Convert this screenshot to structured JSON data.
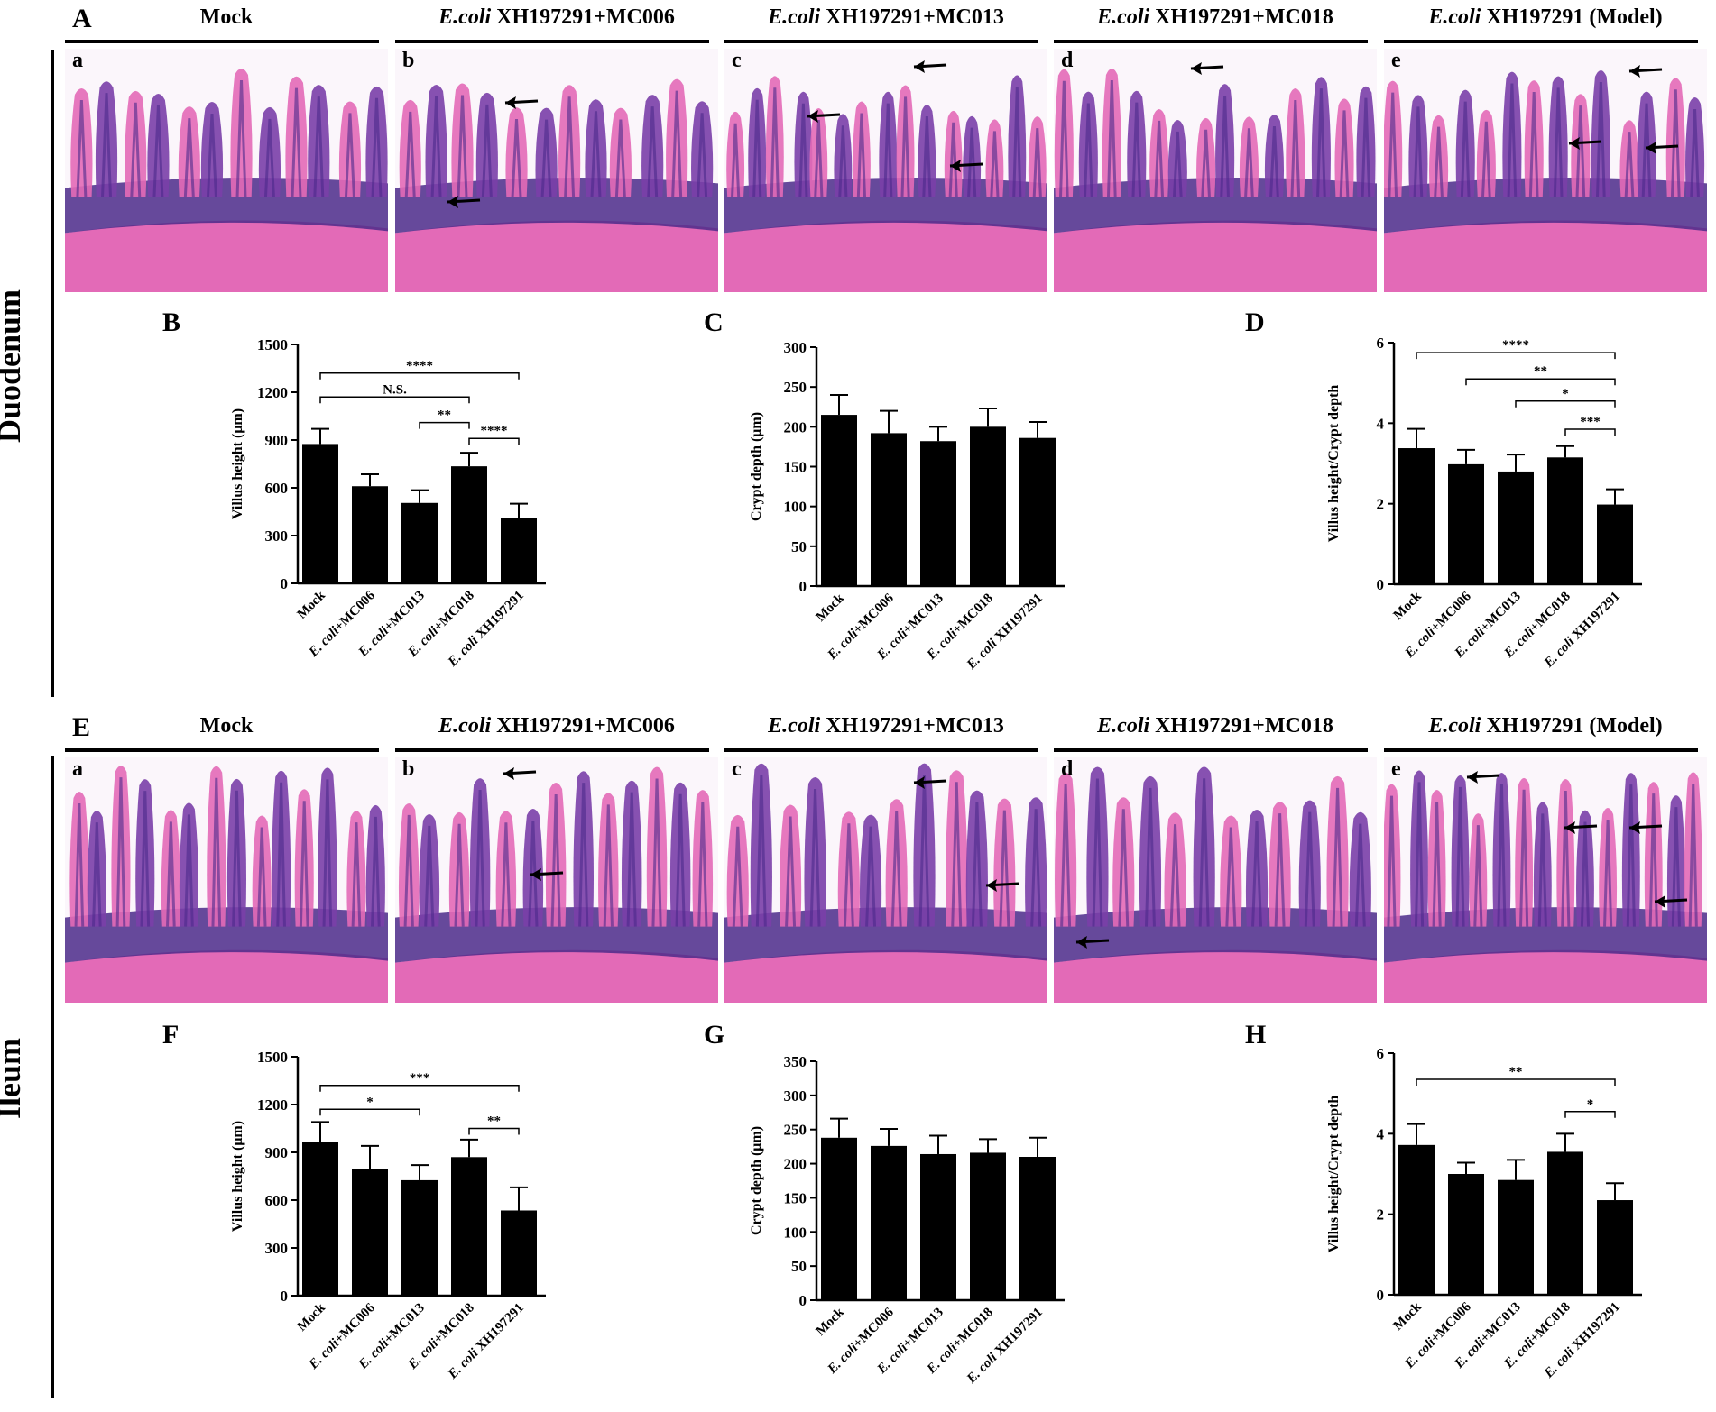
{
  "sections": [
    {
      "id": "duodenum",
      "label": "Duodenum",
      "histo_letter": "A",
      "groups": [
        {
          "sub": "a",
          "title_plain": "Mock",
          "title_italic": ""
        },
        {
          "sub": "b",
          "title_italic": "E.coli",
          "title_plain": " XH197291+MC006"
        },
        {
          "sub": "c",
          "title_italic": "E.coli",
          "title_plain": " XH197291+MC013"
        },
        {
          "sub": "d",
          "title_italic": "E.coli",
          "title_plain": " XH197291+MC018"
        },
        {
          "sub": "e",
          "title_italic": "E.coli",
          "title_plain": " XH197291 (Model)"
        }
      ],
      "charts": [
        "B",
        "C",
        "D"
      ]
    },
    {
      "id": "ileum",
      "label": "Ileum",
      "histo_letter": "E",
      "groups": [
        {
          "sub": "a",
          "title_plain": "Mock",
          "title_italic": ""
        },
        {
          "sub": "b",
          "title_italic": "E.coli",
          "title_plain": " XH197291+MC006"
        },
        {
          "sub": "c",
          "title_italic": "E.coli",
          "title_plain": " XH197291+MC013"
        },
        {
          "sub": "d",
          "title_italic": "E.coli",
          "title_plain": " XH197291+MC018"
        },
        {
          "sub": "e",
          "title_italic": "E.coli",
          "title_plain": " XH197291 (Model)"
        }
      ],
      "charts": [
        "F",
        "G",
        "H"
      ]
    }
  ],
  "colors": {
    "tissue_pink": "#e36ab7",
    "tissue_purple": "#7a3fa8",
    "tissue_dark": "#4b2a8a",
    "lumen": "#fbf6fb",
    "bar": "#000000"
  },
  "chart_data": [
    {
      "panel": "B",
      "type": "bar",
      "ylabel": "Villus height (μm)",
      "categories": [
        [
          "Mock",
          ""
        ],
        [
          "E. coli",
          "+MC006"
        ],
        [
          "E. coli",
          "+MC013"
        ],
        [
          "E. coli",
          "+MC018"
        ],
        [
          "E. coli",
          " XH197291"
        ]
      ],
      "values": [
        875,
        610,
        505,
        735,
        410
      ],
      "errors": [
        95,
        75,
        80,
        85,
        90
      ],
      "ylim": [
        0,
        1500
      ],
      "yticks": [
        0,
        300,
        600,
        900,
        1200,
        1500
      ],
      "sig": [
        {
          "from": 0,
          "to": 4,
          "label": "****",
          "y": 1320
        },
        {
          "from": 0,
          "to": 3,
          "label": "N.S.",
          "y": 1170
        },
        {
          "from": 2,
          "to": 3,
          "label": "**",
          "y": 1010
        },
        {
          "from": 3,
          "to": 4,
          "label": "****",
          "y": 910
        }
      ]
    },
    {
      "panel": "C",
      "type": "bar",
      "ylabel": "Crypt depth (μm)",
      "categories": [
        [
          "Mock",
          ""
        ],
        [
          "E. coli",
          "+MC006"
        ],
        [
          "E. coli",
          "+MC013"
        ],
        [
          "E. coli",
          "+MC018"
        ],
        [
          "E. coli",
          " XH197291"
        ]
      ],
      "values": [
        215,
        192,
        182,
        200,
        186
      ],
      "errors": [
        25,
        28,
        18,
        23,
        20
      ],
      "ylim": [
        0,
        300
      ],
      "yticks": [
        0,
        50,
        100,
        150,
        200,
        250,
        300
      ],
      "sig": []
    },
    {
      "panel": "D",
      "type": "bar",
      "ylabel": "Villus height/Crypt depth",
      "categories": [
        [
          "Mock",
          ""
        ],
        [
          "E. coli",
          "+MC006"
        ],
        [
          "E. coli",
          "+MC013"
        ],
        [
          "E. coli",
          "+MC018"
        ],
        [
          "E. coli",
          " XH197291"
        ]
      ],
      "values": [
        3.38,
        2.98,
        2.8,
        3.15,
        1.98
      ],
      "errors": [
        0.48,
        0.36,
        0.42,
        0.28,
        0.38
      ],
      "ylim": [
        0,
        6
      ],
      "yticks": [
        0,
        2,
        4,
        6
      ],
      "sig": [
        {
          "from": 0,
          "to": 4,
          "label": "****",
          "y": 5.75
        },
        {
          "from": 1,
          "to": 4,
          "label": "**",
          "y": 5.1
        },
        {
          "from": 2,
          "to": 4,
          "label": "*",
          "y": 4.55
        },
        {
          "from": 3,
          "to": 4,
          "label": "***",
          "y": 3.85
        }
      ]
    },
    {
      "panel": "F",
      "type": "bar",
      "ylabel": "Villus height (μm)",
      "categories": [
        [
          "Mock",
          ""
        ],
        [
          "E. coli",
          "+MC006"
        ],
        [
          "E. coli",
          "+MC013"
        ],
        [
          "E. coli",
          "+MC018"
        ],
        [
          "E. coli",
          " XH197291"
        ]
      ],
      "values": [
        965,
        795,
        725,
        870,
        535
      ],
      "errors": [
        125,
        145,
        95,
        110,
        145
      ],
      "ylim": [
        0,
        1500
      ],
      "yticks": [
        0,
        300,
        600,
        900,
        1200,
        1500
      ],
      "sig": [
        {
          "from": 0,
          "to": 4,
          "label": "***",
          "y": 1320
        },
        {
          "from": 0,
          "to": 2,
          "label": "*",
          "y": 1170
        },
        {
          "from": 3,
          "to": 4,
          "label": "**",
          "y": 1050
        }
      ]
    },
    {
      "panel": "G",
      "type": "bar",
      "ylabel": "Crypt depth (μm)",
      "categories": [
        [
          "Mock",
          ""
        ],
        [
          "E. coli",
          "+MC006"
        ],
        [
          "E. coli",
          "+MC013"
        ],
        [
          "E. coli",
          "+MC018"
        ],
        [
          "E. coli",
          " XH197291"
        ]
      ],
      "values": [
        238,
        226,
        214,
        216,
        210
      ],
      "errors": [
        28,
        25,
        27,
        20,
        28
      ],
      "ylim": [
        0,
        350
      ],
      "yticks": [
        0,
        50,
        100,
        150,
        200,
        250,
        300,
        350
      ],
      "sig": []
    },
    {
      "panel": "H",
      "type": "bar",
      "ylabel": "Villus height/Crypt depth",
      "categories": [
        [
          "Mock",
          ""
        ],
        [
          "E. coli",
          "+MC006"
        ],
        [
          "E. coli",
          "+MC013"
        ],
        [
          "E. coli",
          "+MC018"
        ],
        [
          "E. coli",
          " XH197291"
        ]
      ],
      "values": [
        3.72,
        3.0,
        2.85,
        3.55,
        2.35
      ],
      "errors": [
        0.52,
        0.28,
        0.5,
        0.45,
        0.42
      ],
      "ylim": [
        0,
        6
      ],
      "yticks": [
        0,
        2,
        4,
        6
      ],
      "sig": [
        {
          "from": 0,
          "to": 4,
          "label": "**",
          "y": 5.35
        },
        {
          "from": 3,
          "to": 4,
          "label": "*",
          "y": 4.55
        }
      ]
    }
  ]
}
